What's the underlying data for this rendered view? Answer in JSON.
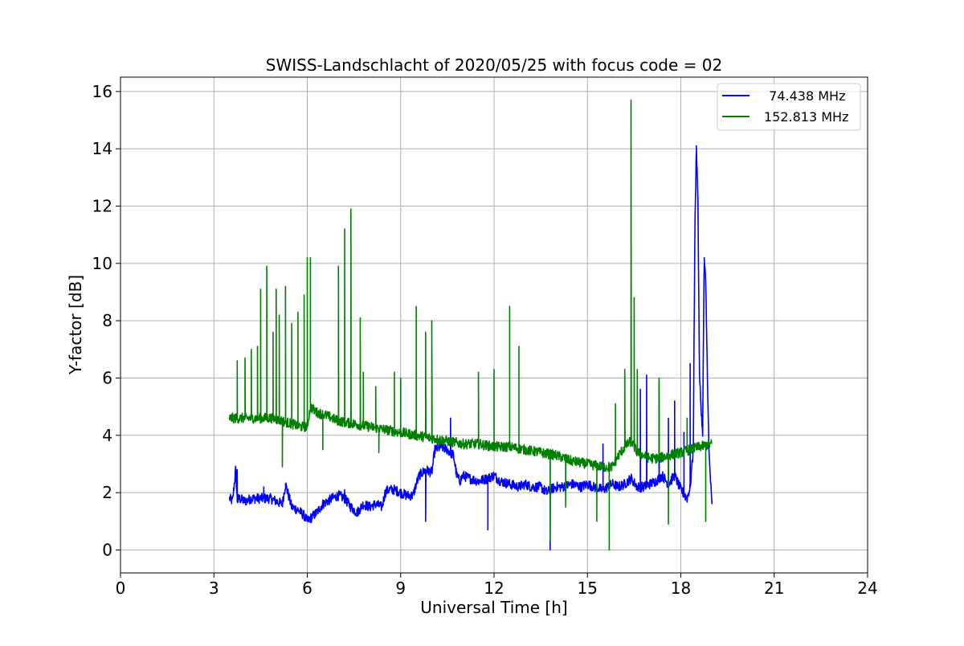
{
  "chart_data": {
    "type": "line",
    "title": "SWISS-Landschlacht of 2020/05/25 with focus code = 02",
    "xlabel": "Universal Time [h]",
    "ylabel": "Y-factor [dB]",
    "xlim": [
      0,
      24
    ],
    "ylim": [
      -0.8,
      16.5
    ],
    "xticks": [
      0,
      3,
      6,
      9,
      12,
      15,
      18,
      21,
      24
    ],
    "yticks": [
      0,
      2,
      4,
      6,
      8,
      10,
      12,
      14,
      16
    ],
    "grid": true,
    "legend_position": "top-right",
    "series": [
      {
        "name": "  74.438 MHz",
        "color": "#0000ff",
        "x": [
          3.5,
          3.6,
          3.7,
          3.75,
          3.8,
          4.0,
          4.2,
          4.5,
          4.8,
          5.0,
          5.2,
          5.3,
          5.5,
          5.7,
          5.9,
          6.0,
          6.1,
          6.3,
          6.5,
          6.8,
          7.0,
          7.2,
          7.4,
          7.6,
          7.8,
          8.0,
          8.2,
          8.4,
          8.5,
          8.6,
          8.8,
          9.0,
          9.2,
          9.4,
          9.5,
          9.6,
          9.8,
          10.0,
          10.1,
          10.3,
          10.5,
          10.7,
          10.8,
          10.9,
          11.0,
          11.2,
          11.5,
          11.8,
          12.0,
          12.2,
          12.5,
          12.8,
          13.0,
          13.2,
          13.5,
          13.7,
          13.8,
          14.0,
          14.2,
          14.5,
          14.8,
          15.0,
          15.2,
          15.5,
          15.8,
          16.0,
          16.2,
          16.4,
          16.6,
          16.8,
          17.0,
          17.2,
          17.4,
          17.6,
          17.8,
          18.0,
          18.2,
          18.3,
          18.4,
          18.45,
          18.5,
          18.55,
          18.6,
          18.7,
          18.75,
          18.8,
          18.9,
          19.0
        ],
        "y": [
          1.8,
          1.7,
          2.8,
          1.7,
          1.8,
          1.7,
          1.8,
          1.8,
          1.8,
          1.7,
          1.6,
          2.3,
          1.5,
          1.4,
          1.2,
          1.0,
          1.1,
          1.3,
          1.6,
          1.8,
          1.9,
          1.8,
          1.5,
          1.3,
          1.6,
          1.5,
          1.6,
          1.5,
          2.0,
          2.1,
          2.1,
          2.0,
          1.9,
          1.9,
          2.3,
          2.6,
          2.8,
          2.7,
          3.5,
          3.6,
          3.5,
          3.3,
          2.6,
          2.4,
          2.6,
          2.5,
          2.4,
          2.5,
          2.6,
          2.4,
          2.3,
          2.2,
          2.3,
          2.2,
          2.2,
          2.0,
          2.1,
          2.2,
          2.2,
          2.3,
          2.2,
          2.3,
          2.2,
          2.1,
          2.3,
          2.2,
          2.3,
          2.5,
          2.2,
          2.2,
          2.3,
          2.4,
          2.6,
          2.3,
          2.6,
          2.1,
          1.8,
          2.2,
          3.5,
          11.0,
          14.1,
          12.2,
          6.0,
          4.0,
          10.2,
          9.3,
          3.5,
          1.5
        ],
        "spikes": [
          [
            3.75,
            2.8
          ],
          [
            4.6,
            2.2
          ],
          [
            5.3,
            2.3
          ],
          [
            7.2,
            2.1
          ],
          [
            8.9,
            2.0
          ],
          [
            9.8,
            1.0
          ],
          [
            10.6,
            4.6
          ],
          [
            11.8,
            0.7
          ],
          [
            13.8,
            0.0
          ],
          [
            15.5,
            3.7
          ],
          [
            16.7,
            5.6
          ],
          [
            16.9,
            6.1
          ],
          [
            17.3,
            5.8
          ],
          [
            17.6,
            4.6
          ],
          [
            17.8,
            5.2
          ],
          [
            18.1,
            4.1
          ],
          [
            18.3,
            6.5
          ],
          [
            18.5,
            14.1
          ],
          [
            18.55,
            12.3
          ],
          [
            18.75,
            10.2
          ],
          [
            18.8,
            9.3
          ]
        ]
      },
      {
        "name": "152.813 MHz",
        "color": "#008000",
        "x": [
          3.5,
          3.7,
          4.0,
          4.3,
          4.6,
          4.9,
          5.2,
          5.5,
          5.8,
          6.0,
          6.1,
          6.3,
          6.6,
          7.0,
          7.5,
          8.0,
          8.5,
          9.0,
          9.5,
          10.0,
          10.5,
          11.0,
          11.5,
          12.0,
          12.5,
          13.0,
          13.5,
          14.0,
          14.5,
          15.0,
          15.5,
          15.8,
          16.0,
          16.2,
          16.4,
          16.6,
          16.8,
          17.0,
          17.3,
          17.6,
          18.0,
          18.3,
          18.6,
          19.0
        ],
        "y": [
          4.6,
          4.6,
          4.6,
          4.6,
          4.6,
          4.6,
          4.5,
          4.4,
          4.3,
          4.3,
          5.0,
          4.8,
          4.7,
          4.5,
          4.4,
          4.3,
          4.2,
          4.1,
          4.0,
          3.9,
          3.8,
          3.7,
          3.7,
          3.6,
          3.6,
          3.5,
          3.4,
          3.3,
          3.1,
          3.0,
          2.9,
          2.9,
          3.3,
          3.6,
          3.8,
          3.4,
          3.3,
          3.2,
          3.2,
          3.3,
          3.4,
          3.5,
          3.6,
          3.7
        ],
        "spikes": [
          [
            3.75,
            6.6
          ],
          [
            4.0,
            6.7
          ],
          [
            4.2,
            7.0
          ],
          [
            4.4,
            7.1
          ],
          [
            4.5,
            9.1
          ],
          [
            4.7,
            9.9
          ],
          [
            4.9,
            7.6
          ],
          [
            5.0,
            9.1
          ],
          [
            5.1,
            8.2
          ],
          [
            5.2,
            2.9
          ],
          [
            5.3,
            9.2
          ],
          [
            5.5,
            7.9
          ],
          [
            5.7,
            8.3
          ],
          [
            5.9,
            8.9
          ],
          [
            6.0,
            10.2
          ],
          [
            6.1,
            10.2
          ],
          [
            6.5,
            3.5
          ],
          [
            7.0,
            9.9
          ],
          [
            7.2,
            11.2
          ],
          [
            7.4,
            11.9
          ],
          [
            7.7,
            8.1
          ],
          [
            7.8,
            6.2
          ],
          [
            8.2,
            5.7
          ],
          [
            8.3,
            3.4
          ],
          [
            8.8,
            6.2
          ],
          [
            9.0,
            6.0
          ],
          [
            9.5,
            8.5
          ],
          [
            9.8,
            7.6
          ],
          [
            10.0,
            8.0
          ],
          [
            10.2,
            3.6
          ],
          [
            11.5,
            6.2
          ],
          [
            12.0,
            6.3
          ],
          [
            12.5,
            8.5
          ],
          [
            12.8,
            7.1
          ],
          [
            13.8,
            0.3
          ],
          [
            14.3,
            1.5
          ],
          [
            15.3,
            1.0
          ],
          [
            15.7,
            0.0
          ],
          [
            15.9,
            5.1
          ],
          [
            16.2,
            6.3
          ],
          [
            16.4,
            15.7
          ],
          [
            16.5,
            8.8
          ],
          [
            16.6,
            6.3
          ],
          [
            17.3,
            6.0
          ],
          [
            17.6,
            0.9
          ],
          [
            18.2,
            4.6
          ],
          [
            18.8,
            1.0
          ]
        ]
      }
    ]
  }
}
